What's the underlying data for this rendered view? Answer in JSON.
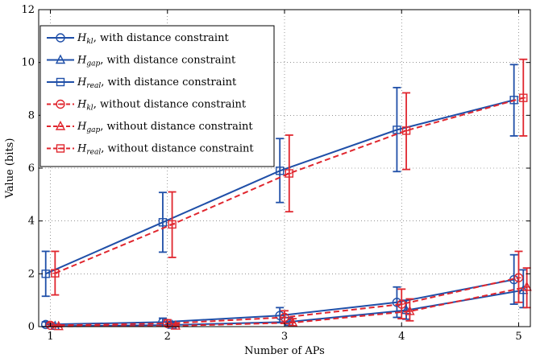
{
  "chart_data": {
    "type": "line",
    "title": "",
    "xlabel": "Number of APs",
    "ylabel": "Value (bits)",
    "xlim": [
      0.9,
      5.1
    ],
    "ylim": [
      0,
      12
    ],
    "xticks": [
      "1",
      "2",
      "3",
      "4",
      "5"
    ],
    "yticks": [
      "0",
      "2",
      "4",
      "6",
      "8",
      "10",
      "12"
    ],
    "grid": true,
    "legend_position": "top-left",
    "x": [
      1,
      2,
      3,
      4,
      5
    ],
    "series": [
      {
        "name": "H_kl, with distance constraint",
        "name_main": "H",
        "name_sub": "kl",
        "name_rest": ", with distance constraint",
        "color": "#1f4fa8",
        "dash": false,
        "marker": "circle",
        "x_offset": -0.04,
        "values": [
          0.08,
          0.17,
          0.42,
          0.92,
          1.78
        ],
        "err_low": [
          0.0,
          0.05,
          0.15,
          0.35,
          0.85
        ],
        "err_high": [
          0.18,
          0.32,
          0.72,
          1.5,
          2.72
        ]
      },
      {
        "name": "H_gap, with distance constraint",
        "name_main": "H",
        "name_sub": "gap",
        "name_rest": ", with distance constraint",
        "color": "#1f4fa8",
        "dash": false,
        "marker": "triangle",
        "x_offset": 0.04,
        "values": [
          0.02,
          0.06,
          0.18,
          0.62,
          1.38
        ],
        "err_low": [
          0.0,
          0.0,
          0.05,
          0.28,
          0.72
        ],
        "err_high": [
          0.08,
          0.14,
          0.34,
          1.0,
          2.15
        ]
      },
      {
        "name": "H_real, with distance constraint",
        "name_main": "H",
        "name_sub": "real",
        "name_rest": ", with distance constraint",
        "color": "#1f4fa8",
        "dash": false,
        "marker": "square",
        "x_offset": -0.04,
        "values": [
          2.0,
          3.95,
          5.9,
          7.45,
          8.58
        ],
        "err_low": [
          1.15,
          2.82,
          4.7,
          5.87,
          7.22
        ],
        "err_high": [
          2.85,
          5.08,
          7.12,
          9.05,
          9.92
        ]
      },
      {
        "name": "H_kl, without distance constraint",
        "name_main": "H",
        "name_sub": "kl",
        "name_rest": ", without distance constraint",
        "color": "#e0262e",
        "dash": true,
        "marker": "circle-dash",
        "x_offset": 0.0,
        "values": [
          0.05,
          0.12,
          0.35,
          0.85,
          1.85
        ],
        "err_low": [
          0.0,
          0.03,
          0.12,
          0.3,
          0.92
        ],
        "err_high": [
          0.14,
          0.26,
          0.6,
          1.42,
          2.85
        ]
      },
      {
        "name": "H_gap, without distance constraint",
        "name_main": "H",
        "name_sub": "gap",
        "name_rest": ", without distance constraint",
        "color": "#e0262e",
        "dash": true,
        "marker": "triangle-dash",
        "x_offset": 0.07,
        "values": [
          0.01,
          0.03,
          0.15,
          0.58,
          1.5
        ],
        "err_low": [
          0.0,
          0.0,
          0.03,
          0.22,
          0.72
        ],
        "err_high": [
          0.06,
          0.1,
          0.3,
          1.05,
          2.22
        ]
      },
      {
        "name": "H_real, without distance constraint",
        "name_main": "H",
        "name_sub": "real",
        "name_rest": ", without distance constraint",
        "color": "#e0262e",
        "dash": true,
        "marker": "square-dash",
        "x_offset": 0.04,
        "values": [
          2.02,
          3.87,
          5.8,
          7.42,
          8.66
        ],
        "err_low": [
          1.2,
          2.62,
          4.35,
          5.95,
          7.22
        ],
        "err_high": [
          2.85,
          5.1,
          7.25,
          8.85,
          10.12
        ]
      }
    ]
  }
}
